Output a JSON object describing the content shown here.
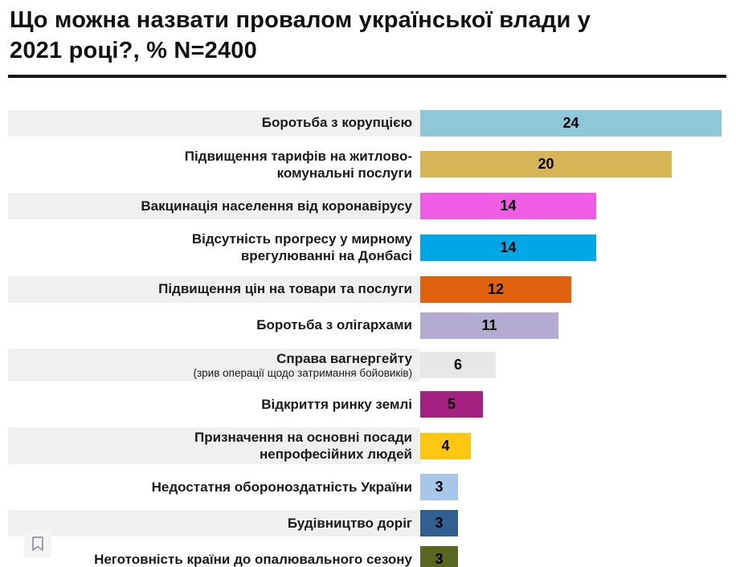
{
  "header": {
    "title": "Що можна назвати провалом української влади у\n2021 році?, % N=2400"
  },
  "chart_data": {
    "type": "bar",
    "orientation": "horizontal",
    "title": "Що можна назвати провалом української влади у 2021 році?, % N=2400",
    "sample_note": "N=2400",
    "unit": "%",
    "value_axis_max": 24,
    "grid": false,
    "legend": "none",
    "rows": [
      {
        "label": "Боротьба з корупцією",
        "sublabel": "",
        "value": 24,
        "color": "#8ec7d8"
      },
      {
        "label": "Підвищення тарифів на житлово-\nкомунальні послуги",
        "sublabel": "",
        "value": 20,
        "color": "#d7b557"
      },
      {
        "label": "Вакцинація населення від коронавірусу",
        "sublabel": "",
        "value": 14,
        "color": "#ef5de4"
      },
      {
        "label": "Відсутність прогресу у мирному\nврегулюванні на Донбасі",
        "sublabel": "",
        "value": 14,
        "color": "#00a7e6"
      },
      {
        "label": "Підвищення цін на товари та послуги",
        "sublabel": "",
        "value": 12,
        "color": "#e0620f"
      },
      {
        "label": "Боротьба з олігархами",
        "sublabel": "",
        "value": 11,
        "color": "#b3abd1"
      },
      {
        "label": "Справа вагнергейту",
        "sublabel": "(зрив операції щодо затримання бойовиків)",
        "value": 6,
        "color": "#e7e7e7"
      },
      {
        "label": "Відкриття ринку землі",
        "sublabel": "",
        "value": 5,
        "color": "#a32181"
      },
      {
        "label": "Призначення на основні посади\nнепрофесійних людей",
        "sublabel": "",
        "value": 4,
        "color": "#fdc711"
      },
      {
        "label": "Недостатня обороноздатність України",
        "sublabel": "",
        "value": 3,
        "color": "#a7c7e9"
      },
      {
        "label": "Будівництво доріг",
        "sublabel": "",
        "value": 3,
        "color": "#30608f"
      },
      {
        "label": "Неготовність країни до опалювального сезону",
        "sublabel": "",
        "value": 3,
        "color": "#59661f"
      }
    ],
    "icons": [
      {
        "name": "bookmark-icon",
        "color": "#9aa0a6"
      }
    ],
    "colors": {
      "stripe": "#f0f0f0",
      "divider": "#1a1a1a",
      "text": "#1a1a1a"
    }
  }
}
